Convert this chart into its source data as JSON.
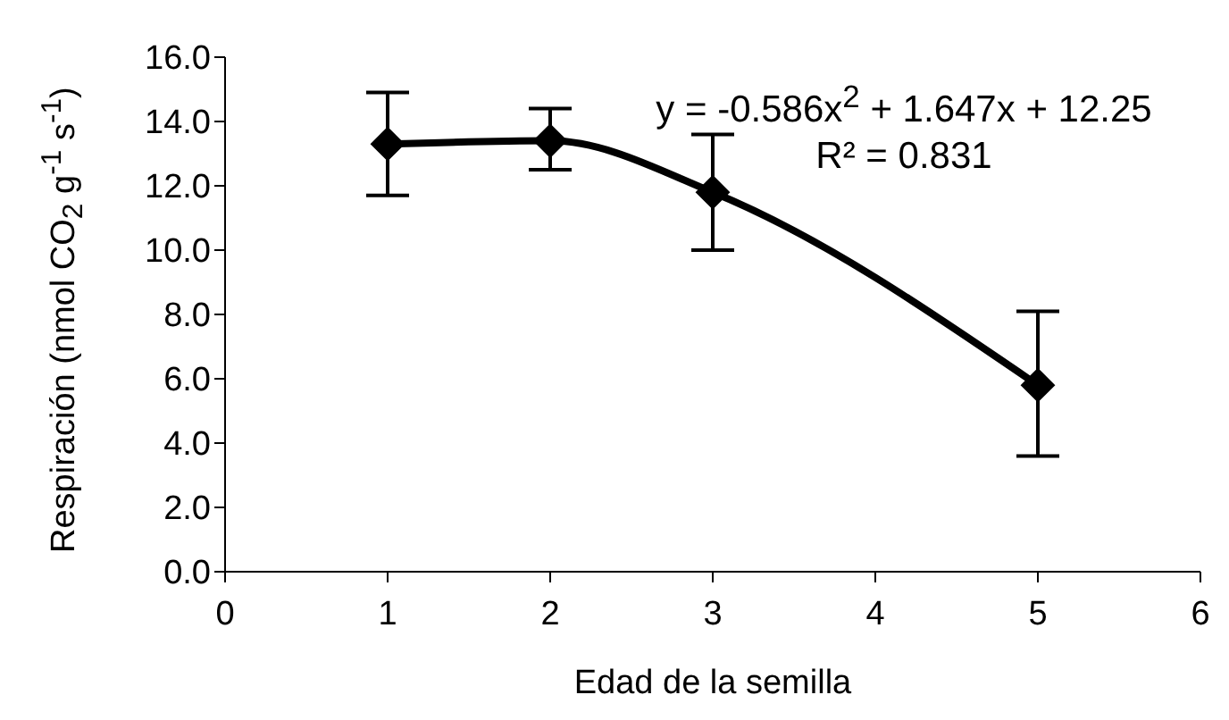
{
  "chart_data": {
    "type": "line",
    "xlabel": "Edad de la semilla",
    "ylabel": "Respiración (nmol CO$_{2}$ g$^{-1}$ s$^{-1}$)",
    "x": [
      1,
      2,
      3,
      5
    ],
    "series": [
      {
        "color": "#000000",
        "values": [
          13.3,
          13.4,
          11.8,
          5.8
        ],
        "errors": [
          [
            11.7,
            14.9
          ],
          [
            12.5,
            14.4
          ],
          [
            10.0,
            13.6
          ],
          [
            3.6,
            8.1
          ]
        ]
      }
    ],
    "xlim": [
      0,
      6
    ],
    "xticks": [
      0,
      1,
      2,
      3,
      4,
      5,
      6
    ],
    "ylim": [
      0,
      16
    ],
    "yticks": [
      {
        "value": 0,
        "label": "0.0"
      },
      {
        "value": 2,
        "label": "2.0"
      },
      {
        "value": 4,
        "label": "4.0"
      },
      {
        "value": 6,
        "label": "6.0"
      },
      {
        "value": 8,
        "label": "8.0"
      },
      {
        "value": 10,
        "label": "10.0"
      },
      {
        "value": 12,
        "label": "12.0"
      },
      {
        "value": 14,
        "label": "14.0"
      },
      {
        "value": 16,
        "label": "16.0"
      }
    ],
    "annotations": [
      "y = -0.586x$^{2}$ + 1.647x + 12.25",
      "R² = 0.831"
    ],
    "grid": false,
    "legend": false,
    "marker": "diamond",
    "line_style": "solid"
  }
}
